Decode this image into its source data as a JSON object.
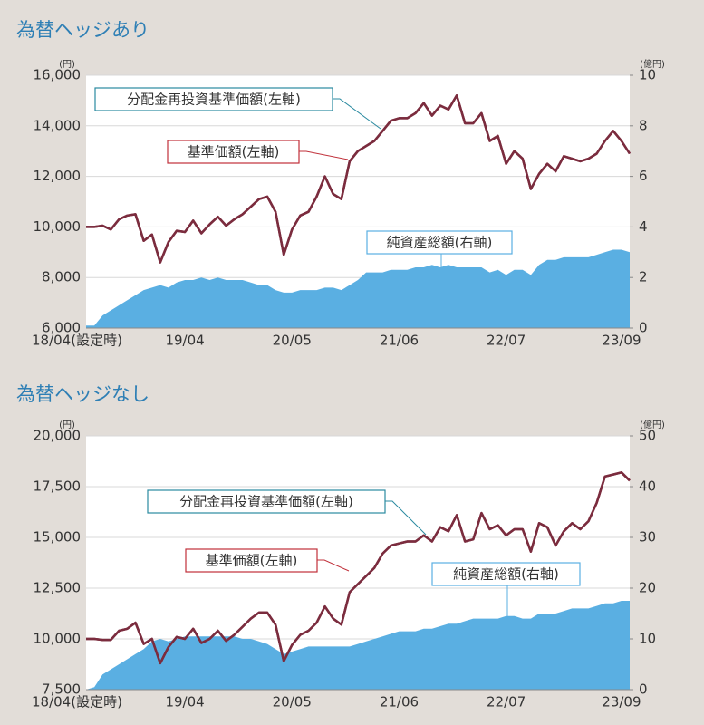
{
  "chart_data": [
    {
      "type": "line",
      "title": "為替ヘッジあり",
      "y_label": "(円)",
      "y2_label": "(億円)",
      "categories": [
        "18/04(設定時)",
        null,
        null,
        null,
        null,
        null,
        null,
        null,
        null,
        null,
        null,
        null,
        "19/04",
        null,
        null,
        null,
        null,
        null,
        null,
        null,
        null,
        null,
        null,
        null,
        null,
        "20/05",
        null,
        null,
        null,
        null,
        null,
        null,
        null,
        null,
        null,
        null,
        null,
        null,
        "21/06",
        null,
        null,
        null,
        null,
        null,
        null,
        null,
        null,
        null,
        null,
        null,
        null,
        "22/07",
        null,
        null,
        null,
        null,
        null,
        null,
        null,
        null,
        null,
        null,
        null,
        null,
        null,
        "23/09",
        null
      ],
      "ylim": [
        6000,
        16000
      ],
      "yticks": [
        {
          "value": 6000,
          "label": "6,000"
        },
        {
          "value": 8000,
          "label": "8,000"
        },
        {
          "value": 10000,
          "label": "10,000"
        },
        {
          "value": 12000,
          "label": "12,000"
        },
        {
          "value": 14000,
          "label": "14,000"
        },
        {
          "value": 16000,
          "label": "16,000"
        }
      ],
      "y2lim": [
        0,
        10
      ],
      "y2ticks": [
        0,
        2,
        4,
        6,
        8,
        10
      ],
      "grid": true,
      "series": [
        {
          "name": "純資産総額(右軸)",
          "color": "#5aafe2",
          "axis": "y2",
          "style": "area",
          "values": [
            0.1,
            0.1,
            0.5,
            0.7,
            0.9,
            1.1,
            1.3,
            1.5,
            1.6,
            1.7,
            1.6,
            1.8,
            1.9,
            1.9,
            2.0,
            1.9,
            2.0,
            1.9,
            1.9,
            1.9,
            1.8,
            1.7,
            1.7,
            1.5,
            1.4,
            1.4,
            1.5,
            1.5,
            1.5,
            1.6,
            1.6,
            1.5,
            1.7,
            1.9,
            2.2,
            2.2,
            2.2,
            2.3,
            2.3,
            2.3,
            2.4,
            2.4,
            2.5,
            2.4,
            2.5,
            2.4,
            2.4,
            2.4,
            2.4,
            2.2,
            2.3,
            2.1,
            2.3,
            2.3,
            2.1,
            2.5,
            2.7,
            2.7,
            2.8,
            2.8,
            2.8,
            2.8,
            2.9,
            3.0,
            3.1,
            3.1,
            3.0
          ]
        },
        {
          "name": "分配金再投資基準価額(左軸)",
          "color": "#7b2c3e",
          "style": "line",
          "values": [
            10000,
            10000,
            10050,
            9900,
            10300,
            10450,
            10500,
            9450,
            9700,
            8600,
            9400,
            9850,
            9800,
            10250,
            9750,
            10100,
            10400,
            10050,
            10300,
            10500,
            10800,
            11100,
            11200,
            10600,
            8900,
            9900,
            10450,
            10600,
            11200,
            12000,
            11300,
            11100,
            12600,
            13000,
            13200,
            13400,
            13800,
            14200,
            14300,
            14300,
            14500,
            14900,
            14400,
            14800,
            14650,
            15200,
            14100,
            14100,
            14500,
            13400,
            13600,
            12500,
            13000,
            12700,
            11500,
            12100,
            12500,
            12200,
            12800,
            12700,
            12600,
            12700,
            12900,
            13400,
            13800,
            13400,
            12900
          ]
        },
        {
          "name": "基準価額(左軸)",
          "color": "#7b2c3e",
          "style": "line",
          "values": [
            10000,
            10000,
            10050,
            9900,
            10300,
            10450,
            10500,
            9450,
            9700,
            8600,
            9400,
            9850,
            9800,
            10250,
            9750,
            10100,
            10400,
            10050,
            10300,
            10500,
            10800,
            11100,
            11200,
            10600,
            8900,
            9900,
            10450,
            10600,
            11200,
            12000,
            11300,
            11100,
            12600,
            13000,
            13200,
            13400,
            13800,
            14200,
            14300,
            14300,
            14500,
            14900,
            14400,
            14800,
            14650,
            15200,
            14100,
            14100,
            14500,
            13400,
            13600,
            12500,
            13000,
            12700,
            11500,
            12100,
            12500,
            12200,
            12800,
            12700,
            12600,
            12700,
            12900,
            13400,
            13800,
            13400,
            12900
          ]
        }
      ]
    },
    {
      "type": "line",
      "title": "為替ヘッジなし",
      "y_label": "(円)",
      "y2_label": "(億円)",
      "categories": [
        "18/04(設定時)",
        null,
        null,
        null,
        null,
        null,
        null,
        null,
        null,
        null,
        null,
        null,
        "19/04",
        null,
        null,
        null,
        null,
        null,
        null,
        null,
        null,
        null,
        null,
        null,
        null,
        "20/05",
        null,
        null,
        null,
        null,
        null,
        null,
        null,
        null,
        null,
        null,
        null,
        null,
        "21/06",
        null,
        null,
        null,
        null,
        null,
        null,
        null,
        null,
        null,
        null,
        null,
        null,
        "22/07",
        null,
        null,
        null,
        null,
        null,
        null,
        null,
        null,
        null,
        null,
        null,
        null,
        null,
        "23/09",
        null
      ],
      "ylim": [
        7500,
        20000
      ],
      "yticks": [
        {
          "value": 7500,
          "label": "7,500"
        },
        {
          "value": 10000,
          "label": "10,000"
        },
        {
          "value": 12500,
          "label": "12,500"
        },
        {
          "value": 15000,
          "label": "15,000"
        },
        {
          "value": 17500,
          "label": "17,500"
        },
        {
          "value": 20000,
          "label": "20,000"
        }
      ],
      "y2lim": [
        0,
        50
      ],
      "y2ticks": [
        0,
        10,
        20,
        30,
        40,
        50
      ],
      "grid": true,
      "series": [
        {
          "name": "純資産総額(右軸)",
          "color": "#5aafe2",
          "axis": "y2",
          "style": "area",
          "values": [
            0,
            0.5,
            3,
            4,
            5,
            6,
            7,
            8,
            9.5,
            10,
            9.5,
            10,
            10.5,
            10.5,
            10.5,
            10.5,
            10.5,
            10.5,
            10.5,
            10,
            10,
            9.5,
            9,
            8,
            7,
            7.5,
            8,
            8.5,
            8.5,
            8.5,
            8.5,
            8.5,
            8.5,
            9,
            9.5,
            10,
            10.5,
            11,
            11.5,
            11.5,
            11.5,
            12,
            12,
            12.5,
            13,
            13,
            13.5,
            14,
            14,
            14,
            14,
            14.5,
            14.5,
            14,
            14,
            15,
            15,
            15,
            15.5,
            16,
            16,
            16,
            16.5,
            17,
            17,
            17.5,
            17.5
          ]
        },
        {
          "name": "分配金再投資基準価額(左軸)",
          "color": "#7b2c3e",
          "style": "line",
          "values": [
            10000,
            10000,
            9950,
            9950,
            10400,
            10500,
            10800,
            9750,
            10000,
            8800,
            9600,
            10100,
            10000,
            10500,
            9800,
            10000,
            10400,
            9900,
            10200,
            10600,
            11000,
            11300,
            11300,
            10700,
            8900,
            9700,
            10200,
            10400,
            10800,
            11600,
            11000,
            10700,
            12300,
            12700,
            13100,
            13500,
            14200,
            14600,
            14700,
            14800,
            14800,
            15100,
            14800,
            15500,
            15300,
            16100,
            14800,
            14900,
            16200,
            15400,
            15600,
            15100,
            15400,
            15400,
            14300,
            15700,
            15500,
            14600,
            15300,
            15700,
            15400,
            15800,
            16700,
            18000,
            18100,
            18200,
            17800
          ]
        },
        {
          "name": "基準価額(左軸)",
          "color": "#7b2c3e",
          "style": "line",
          "values": [
            10000,
            10000,
            9950,
            9950,
            10400,
            10500,
            10800,
            9750,
            10000,
            8800,
            9600,
            10100,
            10000,
            10500,
            9800,
            10000,
            10400,
            9900,
            10200,
            10600,
            11000,
            11300,
            11300,
            10700,
            8900,
            9700,
            10200,
            10400,
            10800,
            11600,
            11000,
            10700,
            12300,
            12700,
            13100,
            13500,
            14200,
            14600,
            14700,
            14800,
            14800,
            15100,
            14800,
            15500,
            15300,
            16100,
            14800,
            14900,
            16200,
            15400,
            15600,
            15100,
            15400,
            15400,
            14300,
            15700,
            15500,
            14600,
            15300,
            15700,
            15400,
            15800,
            16700,
            18000,
            18100,
            18200,
            17800
          ]
        }
      ]
    }
  ]
}
